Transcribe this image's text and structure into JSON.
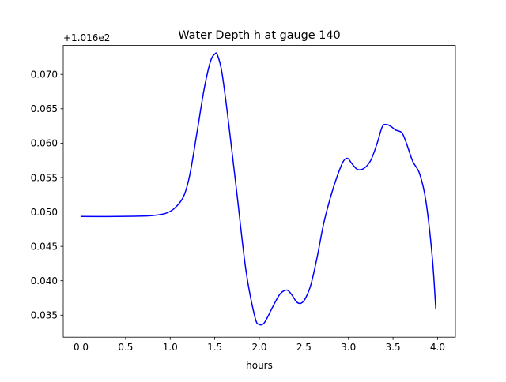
{
  "chart_data": {
    "type": "line",
    "title": "Water Depth h at gauge 140",
    "xlabel": "hours",
    "ylabel": "",
    "offset_label": "+1.016e2",
    "xlim": [
      -0.2,
      4.2
    ],
    "ylim": [
      0.0318,
      0.0742
    ],
    "xticks": [
      {
        "value": 0.0,
        "label": "0.0"
      },
      {
        "value": 0.5,
        "label": "0.5"
      },
      {
        "value": 1.0,
        "label": "1.0"
      },
      {
        "value": 1.5,
        "label": "1.5"
      },
      {
        "value": 2.0,
        "label": "2.0"
      },
      {
        "value": 2.5,
        "label": "2.5"
      },
      {
        "value": 3.0,
        "label": "3.0"
      },
      {
        "value": 3.5,
        "label": "3.5"
      },
      {
        "value": 4.0,
        "label": "4.0"
      }
    ],
    "yticks": [
      {
        "value": 0.035,
        "label": "0.035"
      },
      {
        "value": 0.04,
        "label": "0.040"
      },
      {
        "value": 0.045,
        "label": "0.045"
      },
      {
        "value": 0.05,
        "label": "0.050"
      },
      {
        "value": 0.055,
        "label": "0.055"
      },
      {
        "value": 0.06,
        "label": "0.060"
      },
      {
        "value": 0.065,
        "label": "0.065"
      },
      {
        "value": 0.07,
        "label": "0.070"
      }
    ],
    "grid": false,
    "series": [
      {
        "color": "#0000ff",
        "x": [
          0.0,
          0.3,
          0.6,
          0.8,
          0.95,
          1.05,
          1.15,
          1.22,
          1.3,
          1.38,
          1.45,
          1.5,
          1.53,
          1.58,
          1.65,
          1.75,
          1.85,
          1.95,
          2.0,
          2.05,
          2.1,
          2.15,
          2.22,
          2.27,
          2.32,
          2.37,
          2.42,
          2.47,
          2.52,
          2.58,
          2.65,
          2.72,
          2.8,
          2.87,
          2.94,
          2.99,
          3.04,
          3.1,
          3.17,
          3.25,
          3.32,
          3.38,
          3.43,
          3.48,
          3.53,
          3.6,
          3.65,
          3.72,
          3.8,
          3.87,
          3.94,
          3.98
        ],
        "y": [
          0.04935,
          0.04933,
          0.04938,
          0.04948,
          0.0498,
          0.05055,
          0.05225,
          0.0554,
          0.0615,
          0.0678,
          0.0718,
          0.07295,
          0.0728,
          0.0703,
          0.0635,
          0.0525,
          0.0415,
          0.03475,
          0.03365,
          0.0338,
          0.0349,
          0.0362,
          0.03785,
          0.0385,
          0.0386,
          0.03785,
          0.0369,
          0.03675,
          0.0375,
          0.0395,
          0.0435,
          0.0482,
          0.0522,
          0.05505,
          0.0573,
          0.0578,
          0.057,
          0.0562,
          0.0563,
          0.0575,
          0.0599,
          0.0624,
          0.0627,
          0.0624,
          0.0619,
          0.0615,
          0.06,
          0.0574,
          0.0555,
          0.0515,
          0.0435,
          0.0359
        ]
      }
    ]
  }
}
